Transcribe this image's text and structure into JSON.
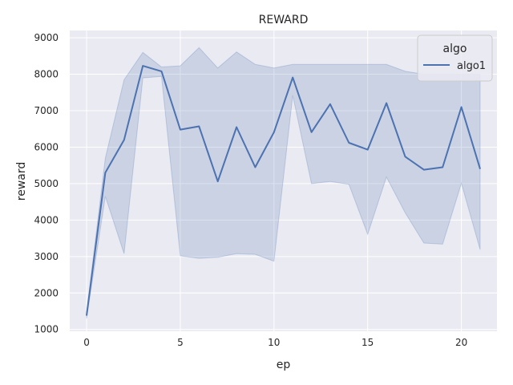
{
  "chart_data": {
    "type": "line",
    "title": "REWARD",
    "xlabel": "ep",
    "ylabel": "reward",
    "x": [
      0,
      1,
      2,
      3,
      4,
      5,
      6,
      7,
      8,
      9,
      10,
      11,
      12,
      13,
      14,
      15,
      16,
      17,
      18,
      19,
      20,
      21
    ],
    "xticks": [
      0,
      5,
      10,
      15,
      20
    ],
    "yticks": [
      1000,
      2000,
      3000,
      4000,
      5000,
      6000,
      7000,
      8000,
      9000
    ],
    "xlim": [
      -0.9,
      21.9
    ],
    "ylim": [
      950,
      9200
    ],
    "grid": true,
    "legend": {
      "title": "algo",
      "placement": "top-right"
    },
    "colors": {
      "line": "#4c72b0",
      "band": "#4c72b0",
      "background": "#eaeaf2",
      "grid": "#ffffff"
    },
    "series": [
      {
        "name": "algo1",
        "values": [
          1380,
          5300,
          6200,
          8230,
          8080,
          6480,
          6570,
          5060,
          6550,
          5450,
          6410,
          7910,
          6410,
          7180,
          6120,
          5930,
          7210,
          5740,
          5380,
          5450,
          7100,
          5400
        ],
        "ci_lower": [
          1300,
          4650,
          3080,
          7900,
          7940,
          3020,
          2950,
          2980,
          3080,
          3060,
          2870,
          7420,
          5000,
          5060,
          4980,
          3610,
          5180,
          4200,
          3370,
          3340,
          5010,
          3190
        ],
        "ci_upper": [
          1460,
          5700,
          7850,
          8600,
          8200,
          8230,
          8730,
          8170,
          8610,
          8270,
          8170,
          8270,
          8270,
          8270,
          8270,
          8270,
          8270,
          8080,
          8000,
          8000,
          8000,
          8000
        ]
      }
    ]
  }
}
